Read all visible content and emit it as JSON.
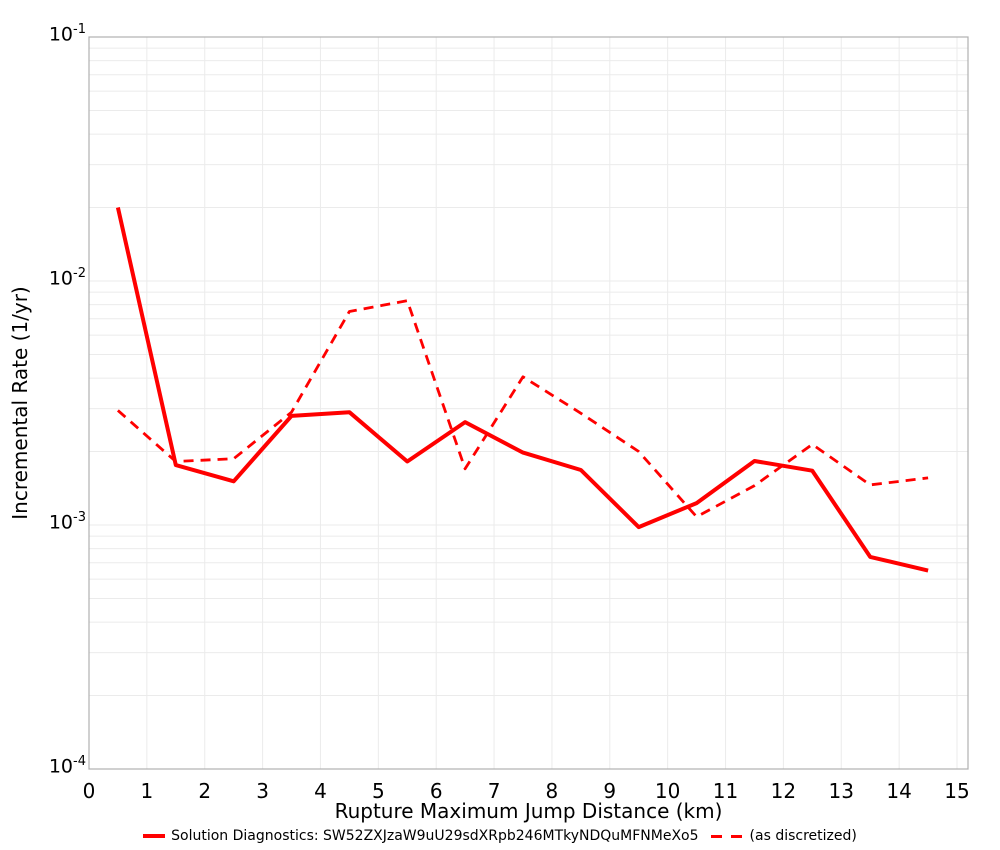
{
  "chart_data": {
    "type": "line",
    "title": "",
    "xlabel": "Rupture Maximum Jump Distance (km)",
    "ylabel": "Incremental Rate (1/yr)",
    "yscale": "log",
    "xlim": [
      0,
      15.2
    ],
    "ylim": [
      0.0001,
      0.1
    ],
    "grid": true,
    "legend_position": "bottom-center",
    "x": [
      0.5,
      1.5,
      2.5,
      3.5,
      4.5,
      5.5,
      6.5,
      7.5,
      8.5,
      9.5,
      10.5,
      11.5,
      12.5,
      13.5,
      14.5
    ],
    "series": [
      {
        "name": "Solution Diagnostics: SW52ZXJzaW9uU29sdXRpb246MTkyNDQuMFNMeXo5",
        "style": "solid",
        "color": "#ff0000",
        "values": [
          0.02,
          0.00176,
          0.00151,
          0.0028,
          0.0029,
          0.00182,
          0.00264,
          0.00198,
          0.00168,
          0.00098,
          0.00123,
          0.00183,
          0.00167,
          0.00074,
          0.00065
        ]
      },
      {
        "name": "(as discretized)",
        "style": "dashed",
        "color": "#ff0000",
        "values": [
          0.00295,
          0.00182,
          0.00187,
          0.0029,
          0.0075,
          0.0083,
          0.0017,
          0.00405,
          0.00287,
          0.002,
          0.00108,
          0.00145,
          0.00214,
          0.00146,
          0.00156
        ]
      }
    ],
    "xticks": [
      "0",
      "1",
      "2",
      "3",
      "4",
      "5",
      "6",
      "7",
      "8",
      "9",
      "10",
      "11",
      "12",
      "13",
      "14",
      "15"
    ],
    "yticks": [
      {
        "base": "10",
        "exp": "-1",
        "value": 0.1
      },
      {
        "base": "10",
        "exp": "-2",
        "value": 0.01
      },
      {
        "base": "10",
        "exp": "-3",
        "value": 0.001
      },
      {
        "base": "10",
        "exp": "-4",
        "value": 0.0001
      }
    ],
    "colors": {
      "grid": "#ebebeb",
      "border": "#b0b0b0",
      "text": "#000000",
      "background": "#ffffff"
    }
  }
}
